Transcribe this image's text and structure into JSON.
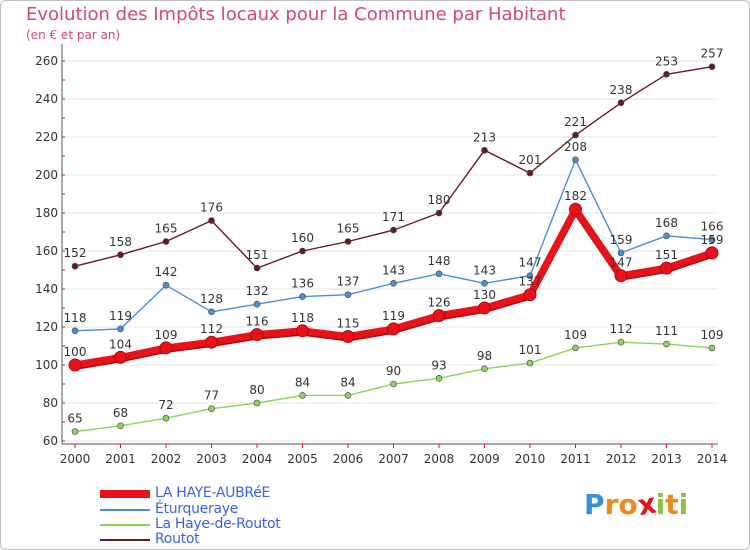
{
  "chart_data": {
    "type": "line",
    "title": "Evolution des Impôts locaux pour la Commune par Habitant",
    "subtitle": "(en € et par an)",
    "categories": [
      "2000",
      "2001",
      "2002",
      "2003",
      "2004",
      "2005",
      "2006",
      "2007",
      "2008",
      "2009",
      "2010",
      "2011",
      "2012",
      "2013",
      "2014"
    ],
    "ylim": [
      60,
      260
    ],
    "yticks": [
      60,
      80,
      100,
      120,
      140,
      160,
      180,
      200,
      220,
      240,
      260
    ],
    "grid": "horizontal",
    "legend_position": "bottom-left",
    "series": [
      {
        "name": "LA HAYE-AUBRéE",
        "color": "#e8121a",
        "values": [
          100,
          104,
          109,
          112,
          116,
          118,
          115,
          119,
          126,
          130,
          137,
          182,
          147,
          151,
          159
        ]
      },
      {
        "name": "Éturqueraye",
        "color": "#4a8fd4",
        "values": [
          118,
          119,
          142,
          128,
          132,
          136,
          137,
          143,
          148,
          143,
          147,
          208,
          159,
          168,
          166
        ]
      },
      {
        "name": "La Haye-de-Routot",
        "color": "#8bd45a",
        "values": [
          65,
          68,
          72,
          77,
          80,
          84,
          84,
          90,
          93,
          98,
          101,
          109,
          112,
          111,
          109
        ]
      },
      {
        "name": "Routot",
        "color": "#6b1a22",
        "values": [
          152,
          158,
          165,
          176,
          151,
          160,
          165,
          171,
          180,
          213,
          201,
          221,
          238,
          253,
          257
        ]
      }
    ]
  },
  "logo": {
    "letters": [
      "P",
      "r",
      "o",
      "x",
      "i",
      "t",
      "i"
    ],
    "colors": [
      "#3a8fd8",
      "#f08a1c",
      "#f08a1c",
      "#e8121a",
      "#8bc34a",
      "#f08a1c",
      "#8bc34a"
    ]
  }
}
